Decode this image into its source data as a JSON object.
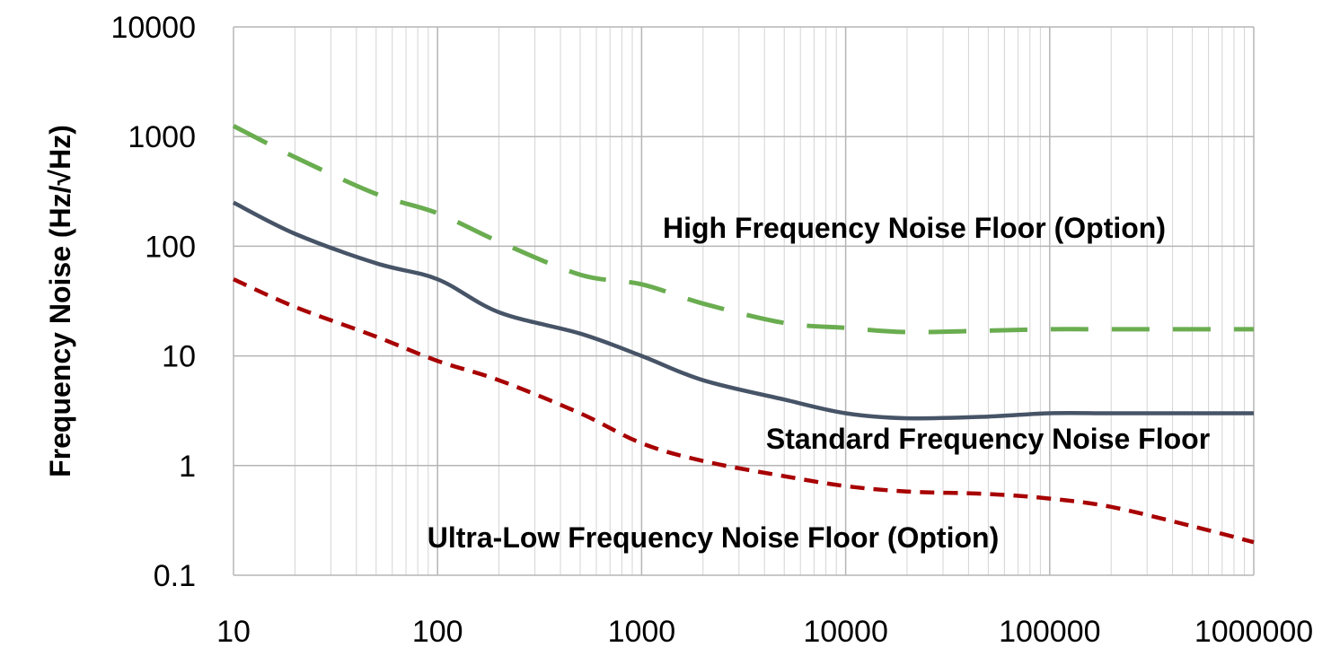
{
  "chart_data": {
    "type": "line",
    "title": "",
    "xlabel": "",
    "ylabel": "Frequency Noise (Hz/√Hz)",
    "x_scale": "log",
    "y_scale": "log",
    "xlim": [
      10,
      1000000
    ],
    "ylim": [
      0.1,
      10000
    ],
    "x_ticks": [
      "10",
      "100",
      "1000",
      "10000",
      "100000",
      "1000000"
    ],
    "y_ticks": [
      "0.1",
      "1",
      "10",
      "100",
      "1000",
      "10000"
    ],
    "grid": true,
    "legend": "none",
    "series": [
      {
        "name": "High Frequency Noise Floor (Option)",
        "color": "#6aad50",
        "line_style": "dashed",
        "x": [
          10,
          20,
          50,
          100,
          200,
          500,
          1000,
          2000,
          5000,
          10000,
          20000,
          50000,
          100000,
          200000,
          500000,
          1000000
        ],
        "y": [
          1250,
          650,
          300,
          200,
          110,
          55,
          45,
          30,
          20,
          18,
          16.5,
          17,
          17.5,
          17.5,
          17.5,
          17.5
        ]
      },
      {
        "name": "Standard Frequency Noise Floor",
        "color": "#475467",
        "line_style": "solid",
        "x": [
          10,
          20,
          50,
          100,
          200,
          500,
          1000,
          2000,
          5000,
          10000,
          20000,
          50000,
          100000,
          200000,
          500000,
          1000000
        ],
        "y": [
          250,
          130,
          70,
          50,
          25,
          16,
          10,
          6,
          4,
          3,
          2.7,
          2.8,
          3,
          3,
          3,
          3
        ]
      },
      {
        "name": "Ultra-Low Frequency Noise Floor (Option)",
        "color": "#a80000",
        "line_style": "dashed",
        "x": [
          10,
          20,
          50,
          100,
          200,
          500,
          1000,
          2000,
          5000,
          10000,
          20000,
          50000,
          100000,
          200000,
          500000,
          1000000
        ],
        "y": [
          50,
          28,
          15,
          9,
          6,
          3,
          1.6,
          1.1,
          0.8,
          0.65,
          0.58,
          0.55,
          0.5,
          0.42,
          0.28,
          0.2
        ]
      }
    ]
  }
}
